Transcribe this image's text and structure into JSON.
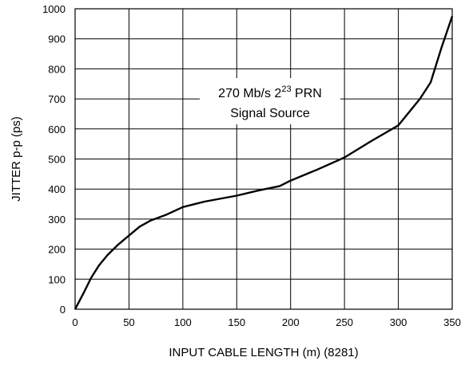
{
  "chart_data": {
    "type": "line",
    "xlabel": "INPUT CABLE LENGTH (m) (8281)",
    "ylabel": "JITTER p-p (ps)",
    "xlim": [
      0,
      350
    ],
    "ylim": [
      0,
      1000
    ],
    "x_ticks": [
      0,
      50,
      100,
      150,
      200,
      250,
      300,
      350
    ],
    "y_ticks": [
      0,
      100,
      200,
      300,
      400,
      500,
      600,
      700,
      800,
      900,
      1000
    ],
    "grid": true,
    "annotation": {
      "line1_pre": "270 Mb/s 2",
      "line1_sup": "23",
      "line1_post": " PRN",
      "line2": "Signal Source"
    },
    "series": [
      {
        "x": [
          0,
          8,
          15,
          22,
          30,
          40,
          50,
          60,
          70,
          85,
          100,
          120,
          150,
          170,
          190,
          200,
          225,
          250,
          275,
          300,
          320,
          330,
          340,
          350
        ],
        "y": [
          0,
          55,
          105,
          145,
          180,
          215,
          245,
          275,
          295,
          315,
          340,
          358,
          378,
          395,
          410,
          428,
          465,
          505,
          560,
          612,
          700,
          755,
          870,
          975
        ]
      }
    ]
  }
}
